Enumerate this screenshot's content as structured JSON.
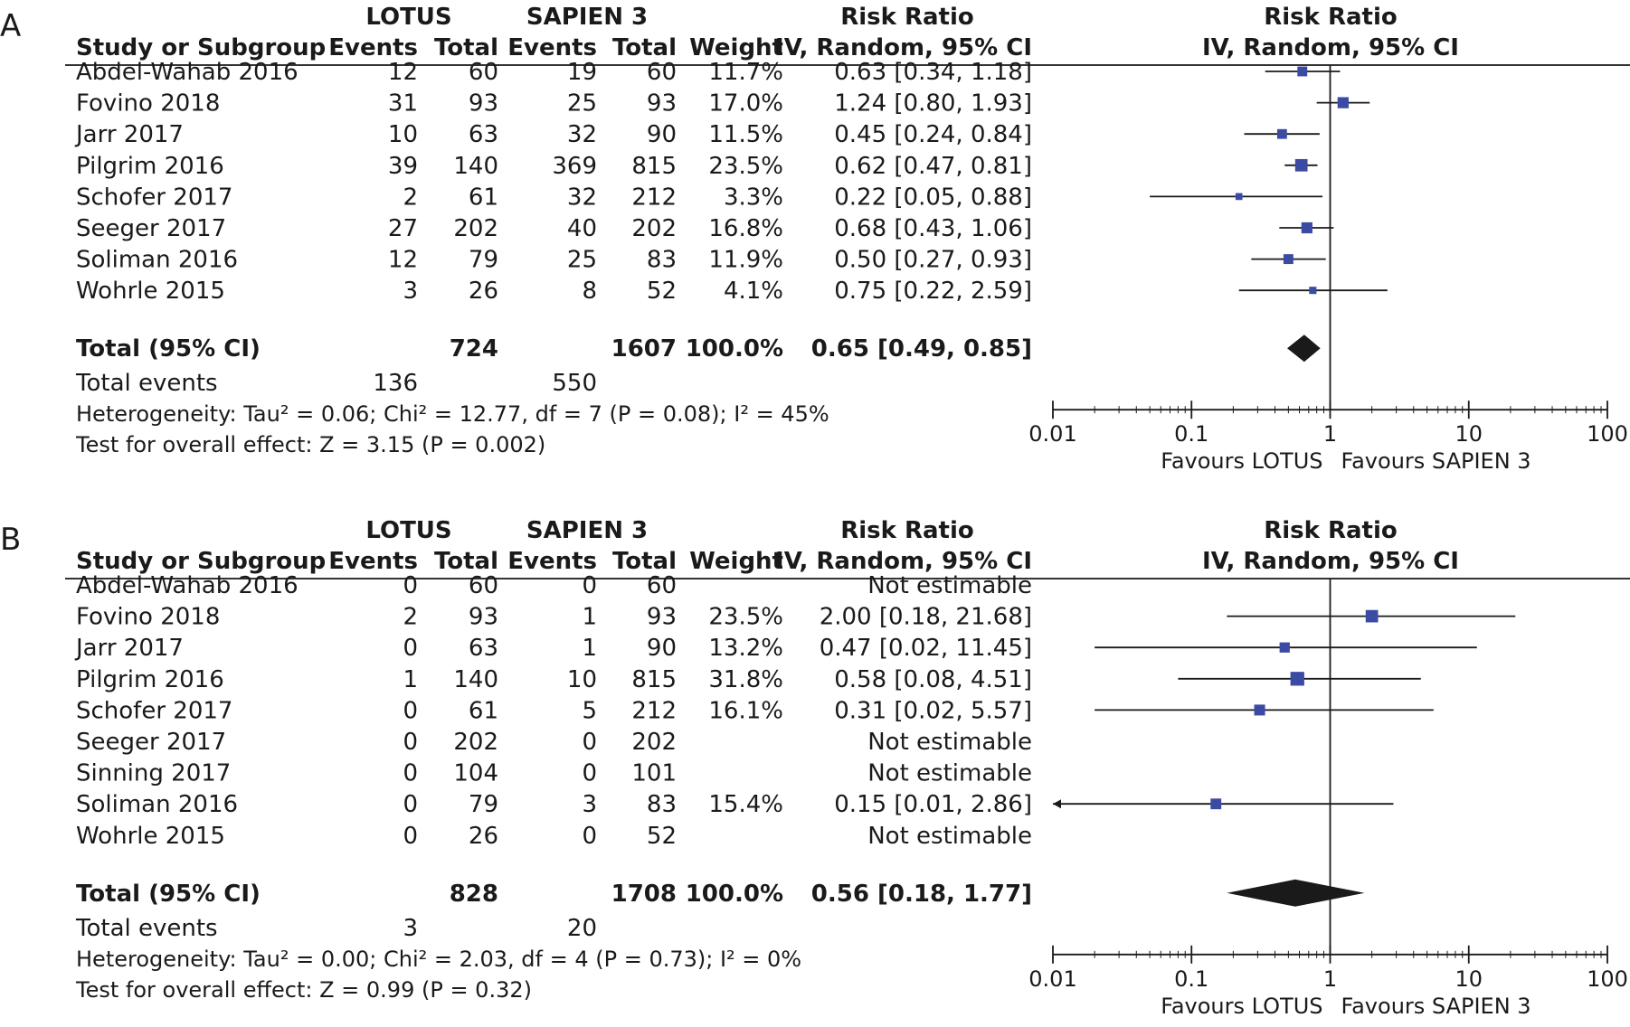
{
  "chart_data": [
    {
      "type": "forest",
      "panel_label": "A",
      "group1_name": "LOTUS",
      "group2_name": "SAPIEN 3",
      "columns": {
        "study": "Study or Subgroup",
        "events1": "Events",
        "total1": "Total",
        "events2": "Events",
        "total2": "Total",
        "weight": "Weight",
        "effect_header1": "Risk Ratio",
        "effect_header2": "IV, Random, 95% CI"
      },
      "plot_header1": "Risk Ratio",
      "plot_header2": "IV, Random, 95% CI",
      "studies": [
        {
          "name": "Abdel-Wahab 2016",
          "events1": "12",
          "total1": "60",
          "events2": "19",
          "total2": "60",
          "weight": "11.7%",
          "ci_text": "0.63 [0.34, 1.18]",
          "rr": 0.63,
          "lo": 0.34,
          "hi": 1.18,
          "w": 11.7
        },
        {
          "name": "Fovino 2018",
          "events1": "31",
          "total1": "93",
          "events2": "25",
          "total2": "93",
          "weight": "17.0%",
          "ci_text": "1.24 [0.80, 1.93]",
          "rr": 1.24,
          "lo": 0.8,
          "hi": 1.93,
          "w": 17.0
        },
        {
          "name": "Jarr 2017",
          "events1": "10",
          "total1": "63",
          "events2": "32",
          "total2": "90",
          "weight": "11.5%",
          "ci_text": "0.45 [0.24, 0.84]",
          "rr": 0.45,
          "lo": 0.24,
          "hi": 0.84,
          "w": 11.5
        },
        {
          "name": "Pilgrim 2016",
          "events1": "39",
          "total1": "140",
          "events2": "369",
          "total2": "815",
          "weight": "23.5%",
          "ci_text": "0.62 [0.47, 0.81]",
          "rr": 0.62,
          "lo": 0.47,
          "hi": 0.81,
          "w": 23.5
        },
        {
          "name": "Schofer 2017",
          "events1": "2",
          "total1": "61",
          "events2": "32",
          "total2": "212",
          "weight": "3.3%",
          "ci_text": "0.22 [0.05, 0.88]",
          "rr": 0.22,
          "lo": 0.05,
          "hi": 0.88,
          "w": 3.3
        },
        {
          "name": "Seeger 2017",
          "events1": "27",
          "total1": "202",
          "events2": "40",
          "total2": "202",
          "weight": "16.8%",
          "ci_text": "0.68 [0.43, 1.06]",
          "rr": 0.68,
          "lo": 0.43,
          "hi": 1.06,
          "w": 16.8
        },
        {
          "name": "Soliman 2016",
          "events1": "12",
          "total1": "79",
          "events2": "25",
          "total2": "83",
          "weight": "11.9%",
          "ci_text": "0.50 [0.27, 0.93]",
          "rr": 0.5,
          "lo": 0.27,
          "hi": 0.93,
          "w": 11.9
        },
        {
          "name": "Wohrle 2015",
          "events1": "3",
          "total1": "26",
          "events2": "8",
          "total2": "52",
          "weight": "4.1%",
          "ci_text": "0.75 [0.22, 2.59]",
          "rr": 0.75,
          "lo": 0.22,
          "hi": 2.59,
          "w": 4.1
        }
      ],
      "total": {
        "label": "Total (95% CI)",
        "total1": "724",
        "total2": "1607",
        "weight": "100.0%",
        "ci_text": "0.65 [0.49, 0.85]",
        "rr": 0.65,
        "lo": 0.49,
        "hi": 0.85
      },
      "total_events": {
        "label": "Total events",
        "events1": "136",
        "events2": "550"
      },
      "heterogeneity": "Heterogeneity: Tau² = 0.06; Chi² = 12.77, df = 7 (P = 0.08); I² = 45%",
      "overall_effect": "Test for overall effect: Z = 3.15 (P = 0.002)",
      "x_scale": "log",
      "x_ticks": [
        {
          "v": 0.01,
          "label": "0.01"
        },
        {
          "v": 0.1,
          "label": "0.1"
        },
        {
          "v": 1,
          "label": "1"
        },
        {
          "v": 10,
          "label": "10"
        },
        {
          "v": 100,
          "label": "100"
        }
      ],
      "xlim": [
        0.01,
        100
      ],
      "favours_left": "Favours LOTUS",
      "favours_right": "Favours SAPIEN 3",
      "marker_color": "#3b4aa3",
      "diamond_color": "#1a1a1a"
    },
    {
      "type": "forest",
      "panel_label": "B",
      "group1_name": "LOTUS",
      "group2_name": "SAPIEN 3",
      "columns": {
        "study": "Study or Subgroup",
        "events1": "Events",
        "total1": "Total",
        "events2": "Events",
        "total2": "Total",
        "weight": "Weight",
        "effect_header1": "Risk Ratio",
        "effect_header2": "IV, Random, 95% CI"
      },
      "plot_header1": "Risk Ratio",
      "plot_header2": "IV, Random, 95% CI",
      "studies": [
        {
          "name": "Abdel-Wahab 2016",
          "events1": "0",
          "total1": "60",
          "events2": "0",
          "total2": "60",
          "weight": "",
          "ci_text": "Not estimable",
          "rr": null,
          "lo": null,
          "hi": null,
          "w": null
        },
        {
          "name": "Fovino 2018",
          "events1": "2",
          "total1": "93",
          "events2": "1",
          "total2": "93",
          "weight": "23.5%",
          "ci_text": "2.00 [0.18, 21.68]",
          "rr": 2.0,
          "lo": 0.18,
          "hi": 21.68,
          "w": 23.5
        },
        {
          "name": "Jarr 2017",
          "events1": "0",
          "total1": "63",
          "events2": "1",
          "total2": "90",
          "weight": "13.2%",
          "ci_text": "0.47 [0.02, 11.45]",
          "rr": 0.47,
          "lo": 0.02,
          "hi": 11.45,
          "w": 13.2
        },
        {
          "name": "Pilgrim 2016",
          "events1": "1",
          "total1": "140",
          "events2": "10",
          "total2": "815",
          "weight": "31.8%",
          "ci_text": "0.58 [0.08, 4.51]",
          "rr": 0.58,
          "lo": 0.08,
          "hi": 4.51,
          "w": 31.8
        },
        {
          "name": "Schofer 2017",
          "events1": "0",
          "total1": "61",
          "events2": "5",
          "total2": "212",
          "weight": "16.1%",
          "ci_text": "0.31 [0.02, 5.57]",
          "rr": 0.31,
          "lo": 0.02,
          "hi": 5.57,
          "w": 16.1
        },
        {
          "name": "Seeger 2017",
          "events1": "0",
          "total1": "202",
          "events2": "0",
          "total2": "202",
          "weight": "",
          "ci_text": "Not estimable",
          "rr": null,
          "lo": null,
          "hi": null,
          "w": null
        },
        {
          "name": "Sinning 2017",
          "events1": "0",
          "total1": "104",
          "events2": "0",
          "total2": "101",
          "weight": "",
          "ci_text": "Not estimable",
          "rr": null,
          "lo": null,
          "hi": null,
          "w": null
        },
        {
          "name": "Soliman 2016",
          "events1": "0",
          "total1": "79",
          "events2": "3",
          "total2": "83",
          "weight": "15.4%",
          "ci_text": "0.15 [0.01, 2.86]",
          "rr": 0.15,
          "lo": 0.01,
          "hi": 2.86,
          "w": 15.4
        },
        {
          "name": "Wohrle 2015",
          "events1": "0",
          "total1": "26",
          "events2": "0",
          "total2": "52",
          "weight": "",
          "ci_text": "Not estimable",
          "rr": null,
          "lo": null,
          "hi": null,
          "w": null
        }
      ],
      "total": {
        "label": "Total (95% CI)",
        "total1": "828",
        "total2": "1708",
        "weight": "100.0%",
        "ci_text": "0.56 [0.18, 1.77]",
        "rr": 0.56,
        "lo": 0.18,
        "hi": 1.77
      },
      "total_events": {
        "label": "Total events",
        "events1": "3",
        "events2": "20"
      },
      "heterogeneity": "Heterogeneity: Tau² = 0.00; Chi² = 2.03, df = 4 (P = 0.73); I² = 0%",
      "overall_effect": "Test for overall effect: Z = 0.99 (P = 0.32)",
      "x_scale": "log",
      "x_ticks": [
        {
          "v": 0.01,
          "label": "0.01"
        },
        {
          "v": 0.1,
          "label": "0.1"
        },
        {
          "v": 1,
          "label": "1"
        },
        {
          "v": 10,
          "label": "10"
        },
        {
          "v": 100,
          "label": "100"
        }
      ],
      "xlim": [
        0.01,
        100
      ],
      "favours_left": "Favours LOTUS",
      "favours_right": "Favours SAPIEN 3",
      "marker_color": "#3b4aa3",
      "diamond_color": "#1a1a1a"
    }
  ]
}
